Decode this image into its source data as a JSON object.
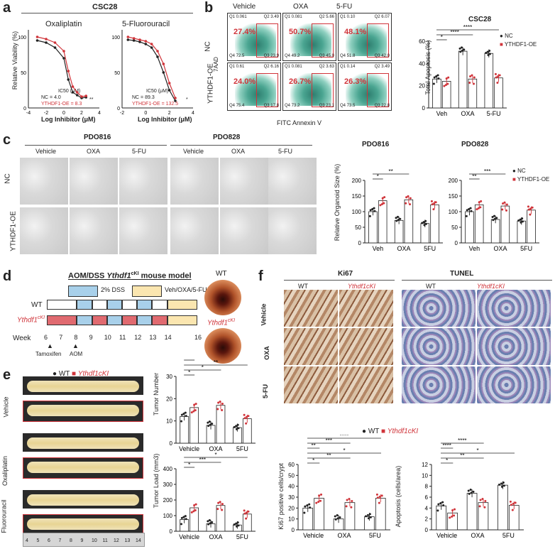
{
  "panel_labels": [
    "a",
    "b",
    "c",
    "d",
    "e",
    "f"
  ],
  "a": {
    "title": "CSC28",
    "sub1": "Oxaliplatin",
    "sub2": "5-Fluorouracil",
    "ylabel": "Relative Viability (%)",
    "xlabel": "Log Inhibitor (μM)",
    "ic50_label": "IC50 (μM)",
    "left_legend": [
      "NC = 4.0",
      "YTHDF1-OE = 8.3"
    ],
    "left_sig": "**",
    "right_legend": [
      "NC = 89.3",
      "YTHDF1-OE = 132.5"
    ],
    "right_sig": "*",
    "yticks": [
      "0",
      "50",
      "100"
    ],
    "left_xticks": [
      "-4",
      "-2",
      "0",
      "2",
      "4"
    ],
    "right_xticks": [
      "-2",
      "0",
      "2",
      "4"
    ]
  },
  "b": {
    "col_headers": [
      "Vehicle",
      "OXA",
      "5-FU"
    ],
    "row_labels": [
      "NC",
      "YTHDF1-OE"
    ],
    "ylabel": "7AAD",
    "xlabel": "FITC Annexin V",
    "percents": [
      [
        "27.4%",
        "50.7%",
        "48.1%"
      ],
      [
        "24.0%",
        "26.7%",
        "26.3%"
      ]
    ],
    "quadrants": [
      [
        [
          "Q1 0.061",
          "Q2 3.49",
          "Q4 72.5",
          "Q3 23.9"
        ],
        [
          "Q1 0.081",
          "Q2 5.66",
          "Q4 49.2",
          "Q3 45.0"
        ],
        [
          "Q1 0.10",
          "Q2 6.07",
          "Q4 51.8",
          "Q3 42.0"
        ]
      ],
      [
        [
          "Q1 0.61",
          "Q2 6.16",
          "Q4 75.4",
          "Q3 17.8"
        ],
        [
          "Q1 0.081",
          "Q2 3.63",
          "Q4 73.2",
          "Q3 23.1"
        ],
        [
          "Q1 0.14",
          "Q2 3.49",
          "Q4 73.5",
          "Q3 22.8"
        ]
      ]
    ],
    "chart_title": "CSC28",
    "chart_ylabel": "Total Apoptosis (%)",
    "legend": [
      "NC",
      "YTHDF1-OE"
    ],
    "sig": [
      "*",
      "****",
      "****"
    ]
  },
  "c": {
    "group1": "PDO816",
    "group2": "PDO828",
    "col_headers": [
      "Vehicle",
      "OXA",
      "5-FU",
      "Vehicle",
      "OXA",
      "5-FU"
    ],
    "row_labels": [
      "NC",
      "YTHDF1-OE"
    ],
    "chart_ylabel": "Relative Organoid Size (%)",
    "legend": [
      "NC",
      "YTHDF1-OE"
    ],
    "sig1": [
      "*",
      "**"
    ],
    "sig2": [
      "**",
      "***"
    ]
  },
  "d": {
    "title_prefix": "AOM/DSS ",
    "title_gene": "Ythdf1",
    "title_sup": "cKI",
    "title_suffix": " mouse model",
    "legend": [
      "2% DSS",
      "Veh/OXA/5-FU"
    ],
    "row_wt": "WT",
    "row_cki": "Ythdf1",
    "row_cki_sup": "cKI",
    "week_label": "Week",
    "weeks": [
      "6",
      "7",
      "8",
      "9",
      "10",
      "11",
      "12",
      "13",
      "14",
      "16"
    ],
    "events": [
      "Tamoxifen",
      "AOM"
    ],
    "endo_wt": "WT",
    "endo_cki": "Ythdf1",
    "endo_cki_sup": "cKI"
  },
  "e": {
    "legend": [
      "WT",
      "Ythdf1cKI"
    ],
    "row_labels": [
      "Vehicle",
      "Oxaliplatin",
      "Fluorouracil"
    ],
    "ruler_ticks": [
      "4",
      "5",
      "6",
      "7",
      "8",
      "9",
      "10",
      "11",
      "12",
      "13",
      "14"
    ],
    "chart1_ylabel": "Tumor Number",
    "chart1_yticks": [
      "0",
      "10",
      "20",
      "30"
    ],
    "chart1_sig": [
      "*",
      "*",
      "**",
      "*",
      "****",
      "*"
    ],
    "chart2_ylabel": "Tumor Load (mm3)",
    "chart2_yticks": [
      "0",
      "100",
      "200",
      "300",
      "400"
    ],
    "chart2_sig": [
      "*",
      "***",
      "*"
    ],
    "xcats": [
      "Vehicle",
      "OXA",
      "5FU"
    ]
  },
  "f": {
    "header1": "Ki67",
    "header2": "TUNEL",
    "col_labels": [
      "WT",
      "Ythdf1cKI",
      "WT",
      "Ythdf1cKI"
    ],
    "row_labels": [
      "Vehicle",
      "OXA",
      "5-FU"
    ],
    "legend": [
      "WT",
      "Ythdf1cKI"
    ],
    "chart1_ylabel": "Ki67 positive cells/crypt",
    "chart1_yticks": [
      "0",
      "10",
      "20",
      "30",
      "40",
      "50",
      "60"
    ],
    "chart1_sig": [
      "*",
      "**",
      "*",
      "**",
      "***",
      "****"
    ],
    "chart2_ylabel": "Apoptosis (cells/area)",
    "chart2_yticks": [
      "0",
      "2",
      "4",
      "6",
      "8",
      "10",
      "12"
    ],
    "chart2_sig": [
      "*",
      "**",
      "*",
      "****",
      "****"
    ],
    "xcats": [
      "Vehicle",
      "OXA",
      "5FU"
    ]
  },
  "colors": {
    "nc": "#222222",
    "oe": "#d0343a",
    "dss": "#a8d0ea",
    "veh": "#fbe6b0",
    "cki_row": "#e06a70"
  },
  "chart_data": [
    {
      "type": "line",
      "title": "Oxaliplatin",
      "xlabel": "Log Inhibitor (μM)",
      "ylabel": "Relative Viability (%)",
      "xlim": [
        -4,
        4
      ],
      "ylim": [
        0,
        110
      ],
      "series": [
        {
          "name": "NC",
          "x": [
            -3,
            -2,
            -1,
            0,
            0.5,
            1,
            1.5,
            2,
            2.5
          ],
          "y": [
            95,
            92,
            85,
            70,
            40,
            22,
            18,
            14,
            15
          ]
        },
        {
          "name": "YTHDF1-OE",
          "x": [
            -3,
            -2,
            -1,
            0,
            0.5,
            1,
            1.5,
            2,
            2.5
          ],
          "y": [
            100,
            97,
            92,
            80,
            52,
            30,
            22,
            16,
            17
          ]
        }
      ]
    },
    {
      "type": "line",
      "title": "5-Fluorouracil",
      "xlabel": "Log Inhibitor (μM)",
      "ylabel": "Relative Viability (%)",
      "xlim": [
        -2,
        4
      ],
      "ylim": [
        0,
        110
      ],
      "series": [
        {
          "name": "NC",
          "x": [
            -1.5,
            -1,
            -0.5,
            0,
            0.5,
            1,
            1.5,
            2,
            2.5
          ],
          "y": [
            96,
            95,
            93,
            90,
            85,
            72,
            50,
            25,
            10
          ]
        },
        {
          "name": "YTHDF1-OE",
          "x": [
            -1.5,
            -1,
            -0.5,
            0,
            0.5,
            1,
            1.5,
            2,
            2.5
          ],
          "y": [
            100,
            98,
            96,
            94,
            90,
            80,
            62,
            35,
            14
          ]
        }
      ]
    },
    {
      "type": "bar",
      "title": "CSC28",
      "ylabel": "Total Apoptosis (%)",
      "categories": [
        "Veh",
        "OXA",
        "5-FU"
      ],
      "ylim": [
        0,
        60
      ],
      "series": [
        {
          "name": "NC",
          "values": [
            26,
            51,
            49
          ]
        },
        {
          "name": "YTHDF1-OE",
          "values": [
            24,
            26,
            27
          ]
        }
      ]
    },
    {
      "type": "bar",
      "title": "PDO816",
      "ylabel": "Relative Organoid Size (%)",
      "categories": [
        "Veh",
        "OXA",
        "5FU"
      ],
      "ylim": [
        0,
        200
      ],
      "series": [
        {
          "name": "NC",
          "values": [
            100,
            72,
            62
          ]
        },
        {
          "name": "YTHDF1-OE",
          "values": [
            135,
            138,
            122
          ]
        }
      ]
    },
    {
      "type": "bar",
      "title": "PDO828",
      "ylabel": "",
      "categories": [
        "Veh",
        "OXA",
        "5FU"
      ],
      "ylim": [
        0,
        200
      ],
      "series": [
        {
          "name": "NC",
          "values": [
            100,
            75,
            70
          ]
        },
        {
          "name": "YTHDF1-OE",
          "values": [
            122,
            118,
            105
          ]
        }
      ]
    },
    {
      "type": "bar",
      "title": "",
      "ylabel": "Tumor Number",
      "categories": [
        "Vehicle",
        "OXA",
        "5FU"
      ],
      "ylim": [
        0,
        30
      ],
      "series": [
        {
          "name": "WT",
          "values": [
            12,
            8,
            7
          ]
        },
        {
          "name": "Ythdf1cKI",
          "values": [
            16,
            17,
            11
          ]
        }
      ]
    },
    {
      "type": "bar",
      "title": "",
      "ylabel": "Tumor Load (mm3)",
      "categories": [
        "Vehicle",
        "OXA",
        "5FU"
      ],
      "ylim": [
        0,
        400
      ],
      "series": [
        {
          "name": "WT",
          "values": [
            75,
            48,
            40
          ]
        },
        {
          "name": "Ythdf1cKI",
          "values": [
            150,
            165,
            110
          ]
        }
      ]
    },
    {
      "type": "bar",
      "title": "",
      "ylabel": "Ki67 positive cells/crypt",
      "categories": [
        "Vehicle",
        "OXA",
        "5FU"
      ],
      "ylim": [
        0,
        60
      ],
      "series": [
        {
          "name": "WT",
          "values": [
            20,
            10,
            12
          ]
        },
        {
          "name": "Ythdf1cKI",
          "values": [
            29,
            25,
            29
          ]
        }
      ]
    },
    {
      "type": "bar",
      "title": "",
      "ylabel": "Apoptosis (cells/area)",
      "categories": [
        "Vehicle",
        "OXA",
        "5FU"
      ],
      "ylim": [
        0,
        12
      ],
      "series": [
        {
          "name": "WT",
          "values": [
            4.4,
            6.7,
            8.2
          ]
        },
        {
          "name": "Ythdf1cKI",
          "values": [
            3.1,
            5.0,
            4.5
          ]
        }
      ]
    }
  ]
}
